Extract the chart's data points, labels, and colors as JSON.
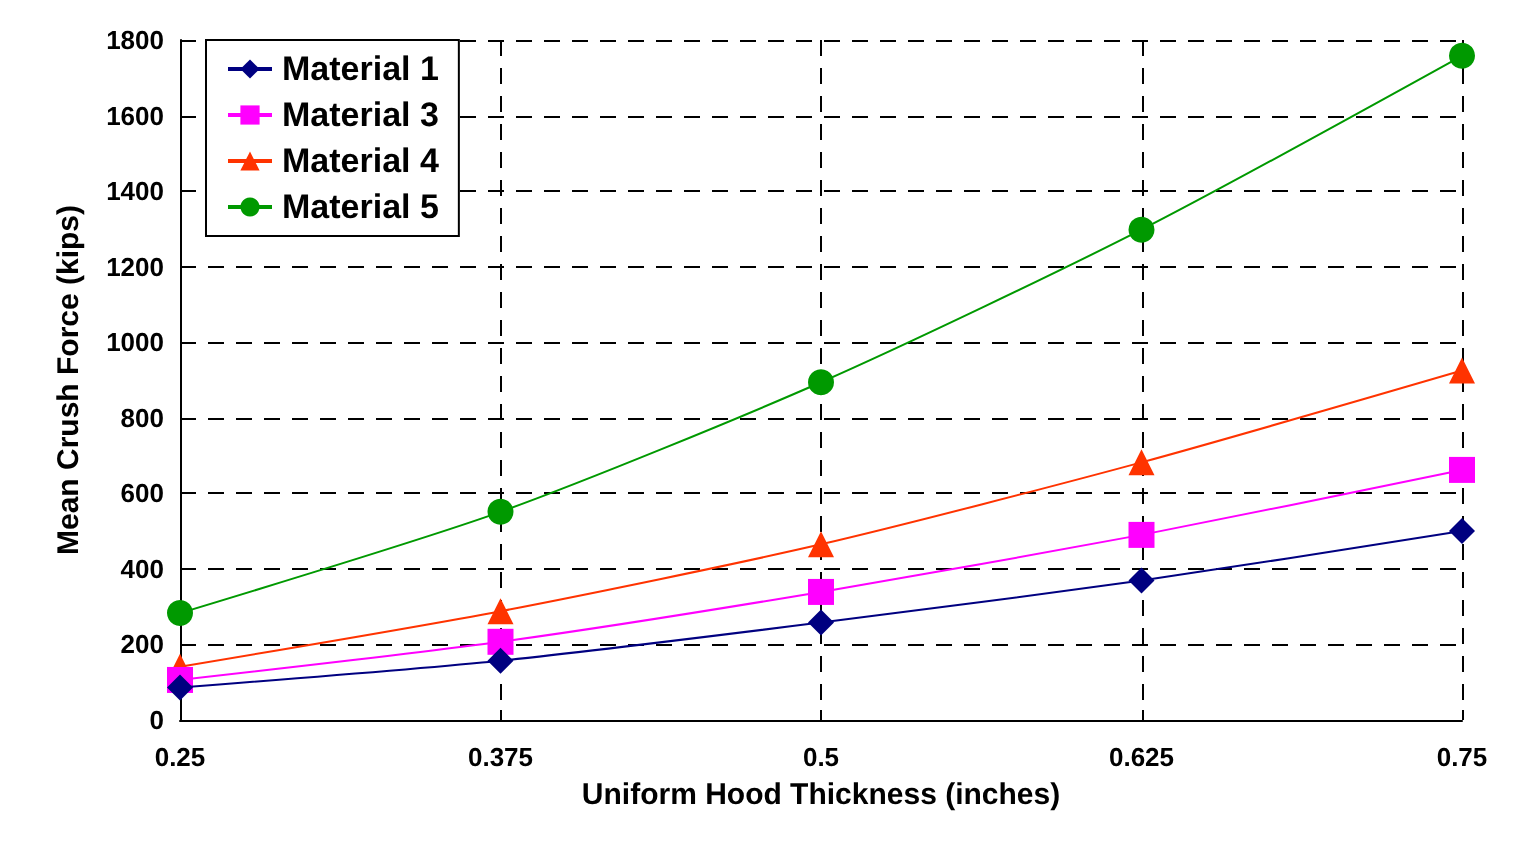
{
  "chart_data": {
    "type": "line",
    "xlabel": "Uniform Hood Thickness (inches)",
    "ylabel": "Mean Crush Force (kips)",
    "x": [
      0.25,
      0.375,
      0.5,
      0.625,
      0.75
    ],
    "series": [
      {
        "name": "Material 1",
        "color": "#000080",
        "marker": "diamond",
        "values": [
          86,
          157,
          258,
          369,
          500
        ]
      },
      {
        "name": "Material 3",
        "color": "#ff00ff",
        "marker": "square",
        "values": [
          106,
          207,
          339,
          490,
          662
        ]
      },
      {
        "name": "Material 4",
        "color": "#ff3300",
        "marker": "triangle",
        "values": [
          141,
          288,
          465,
          682,
          925
        ]
      },
      {
        "name": "Material 5",
        "color": "#009900",
        "marker": "circle",
        "values": [
          283,
          551,
          894,
          1298,
          1758
        ]
      }
    ],
    "xlim": [
      0.25,
      0.75
    ],
    "xticks": [
      0.25,
      0.375,
      0.5,
      0.625,
      0.75
    ],
    "ylim": [
      0,
      1800
    ],
    "yticks": [
      0,
      200,
      400,
      600,
      800,
      1000,
      1200,
      1400,
      1600,
      1800
    ],
    "grid": true,
    "legend": "top left",
    "line_style": "solid"
  }
}
